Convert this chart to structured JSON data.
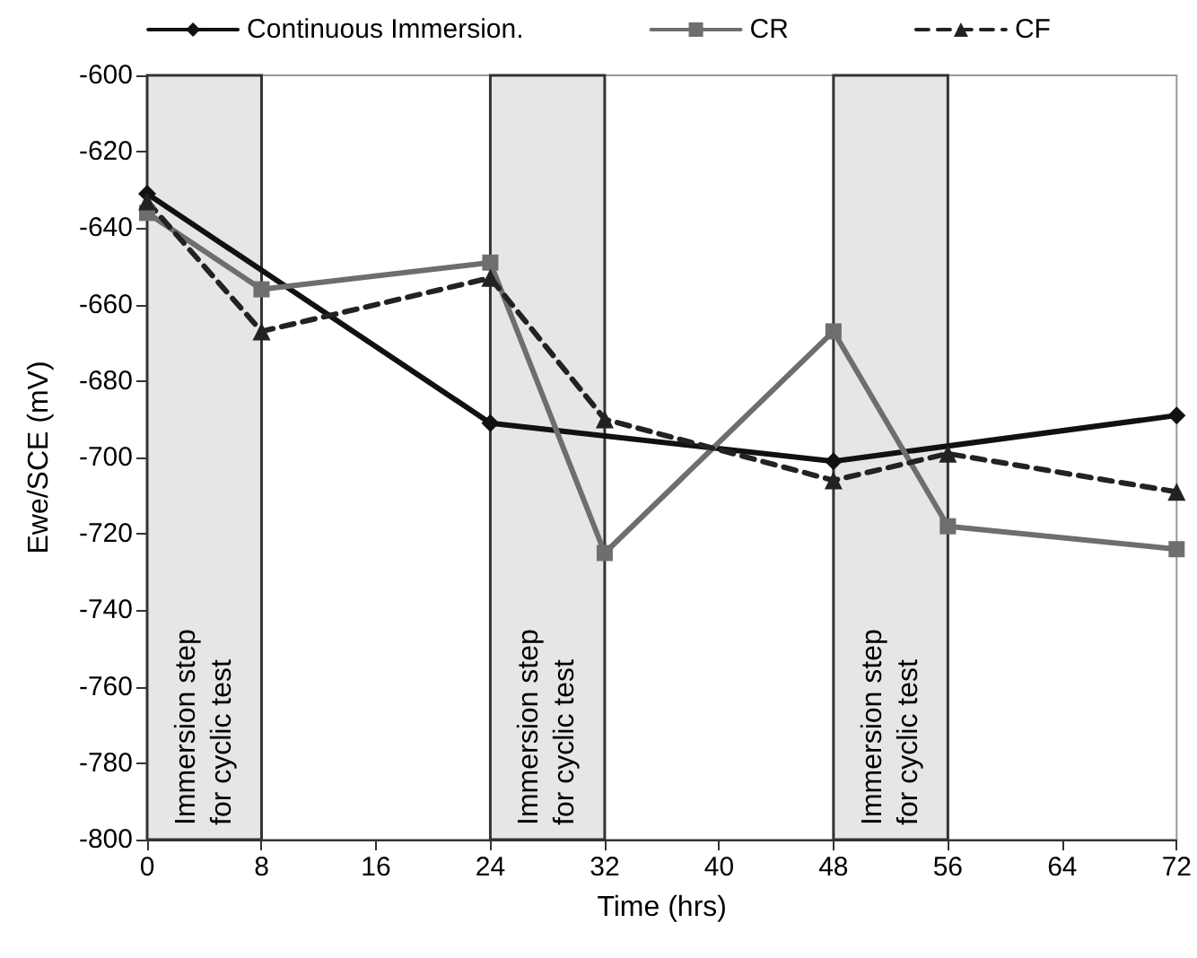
{
  "chart_data": {
    "type": "line",
    "xlabel": "Time (hrs)",
    "ylabel": "Ewe/SCE (mV)",
    "xlim": [
      0,
      72
    ],
    "xticks": [
      0,
      8,
      16,
      24,
      32,
      40,
      48,
      56,
      64,
      72
    ],
    "ylim": [
      -800,
      -600
    ],
    "yticks": [
      -800,
      -780,
      -760,
      -740,
      -720,
      -700,
      -680,
      -660,
      -640,
      -620,
      -600
    ],
    "grid": false,
    "legend": "top",
    "series": [
      {
        "name": "Continuous Immersion.",
        "color": "#111111",
        "marker": "diamond",
        "line_style": "solid",
        "x": [
          0,
          24,
          48,
          72
        ],
        "values": [
          -631,
          -691,
          -701,
          -689
        ]
      },
      {
        "name": "CR",
        "color": "#6e6e6e",
        "marker": "square",
        "line_style": "solid",
        "x": [
          0,
          8,
          24,
          32,
          48,
          56,
          72
        ],
        "values": [
          -636,
          -656,
          -649,
          -725,
          -667,
          -718,
          -724
        ]
      },
      {
        "name": "CF",
        "color": "#222222",
        "marker": "triangle",
        "line_style": "dashed",
        "x": [
          0,
          8,
          24,
          32,
          48,
          56,
          72
        ],
        "values": [
          -633,
          -667,
          -653,
          -690,
          -706,
          -699,
          -709
        ]
      }
    ],
    "bands": [
      {
        "axis": "x",
        "from": 0,
        "to": 8,
        "label": "Immersion step for cyclic test",
        "color": "#e6e6e6"
      },
      {
        "axis": "x",
        "from": 24,
        "to": 32,
        "label": "Immersion step for cyclic test",
        "color": "#e6e6e6"
      },
      {
        "axis": "x",
        "from": 48,
        "to": 56,
        "label": "Immersion step for cyclic test",
        "color": "#e6e6e6"
      }
    ]
  }
}
